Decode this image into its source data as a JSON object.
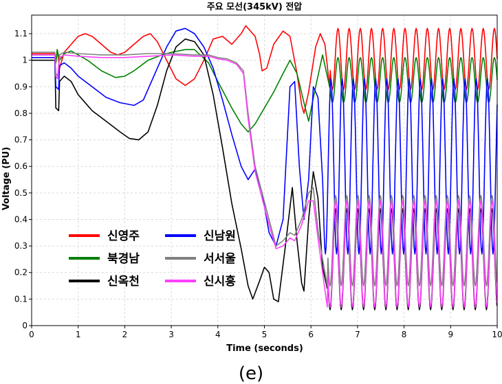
{
  "chart_data": {
    "type": "line",
    "title": "주요 모선(345kV) 전압",
    "xlabel": "Time (seconds)",
    "ylabel": "Voltage (PU)",
    "xlim": [
      0,
      10
    ],
    "ylim": [
      0,
      1.17
    ],
    "xticks": [
      0,
      1,
      2,
      3,
      4,
      5,
      6,
      7,
      8,
      9,
      10
    ],
    "yticks": [
      0,
      0.1,
      0.2,
      0.3,
      0.4,
      0.5,
      0.6,
      0.7,
      0.8,
      0.9,
      1,
      1.1
    ],
    "ytick_labels": [
      "0",
      "0.1",
      "0.2",
      "0.3",
      "0.4",
      "0.5",
      "0.6",
      "0.7",
      "0.8",
      "0.9",
      "1",
      "1.1"
    ],
    "grid": true,
    "legend_position": "lower-left",
    "series": [
      {
        "name": "신영주",
        "color": "#ff0000",
        "points": [
          [
            0,
            1.025
          ],
          [
            0.5,
            1.025
          ],
          [
            0.52,
            0.99
          ],
          [
            0.55,
            1.04
          ],
          [
            0.6,
            0.97
          ],
          [
            0.7,
            1.03
          ],
          [
            0.85,
            1.06
          ],
          [
            1,
            1.09
          ],
          [
            1.15,
            1.1
          ],
          [
            1.3,
            1.09
          ],
          [
            1.5,
            1.06
          ],
          [
            1.7,
            1.03
          ],
          [
            1.85,
            1.02
          ],
          [
            2,
            1.03
          ],
          [
            2.2,
            1.06
          ],
          [
            2.4,
            1.09
          ],
          [
            2.55,
            1.1
          ],
          [
            2.7,
            1.07
          ],
          [
            2.9,
            1.0
          ],
          [
            3.1,
            0.93
          ],
          [
            3.3,
            0.905
          ],
          [
            3.5,
            0.93
          ],
          [
            3.7,
            1.0
          ],
          [
            3.9,
            1.08
          ],
          [
            4.1,
            1.09
          ],
          [
            4.3,
            1.06
          ],
          [
            4.5,
            1.1
          ],
          [
            4.6,
            1.13
          ],
          [
            4.8,
            1.09
          ],
          [
            4.9,
            1.02
          ],
          [
            4.95,
            0.96
          ],
          [
            5.05,
            0.97
          ],
          [
            5.2,
            1.06
          ],
          [
            5.4,
            1.11
          ],
          [
            5.55,
            1.09
          ],
          [
            5.7,
            0.95
          ],
          [
            5.8,
            0.83
          ],
          [
            5.85,
            0.8
          ],
          [
            5.95,
            0.88
          ],
          [
            6.1,
            1.05
          ],
          [
            6.2,
            1.1
          ],
          [
            6.3,
            1.06
          ],
          [
            6.4,
            0.9
          ]
        ],
        "oscillation": {
          "t_start": 6.4,
          "t_end": 10,
          "center": 1.005,
          "amplitude": 0.115,
          "period": 0.24
        }
      },
      {
        "name": "북경남",
        "color": "#008000",
        "points": [
          [
            0,
            1.02
          ],
          [
            0.5,
            1.02
          ],
          [
            0.52,
            0.99
          ],
          [
            0.55,
            1.04
          ],
          [
            0.6,
            1.0
          ],
          [
            0.7,
            1.025
          ],
          [
            0.85,
            1.035
          ],
          [
            1.0,
            1.02
          ],
          [
            1.2,
            1.0
          ],
          [
            1.5,
            0.96
          ],
          [
            1.8,
            0.935
          ],
          [
            2.0,
            0.94
          ],
          [
            2.2,
            0.96
          ],
          [
            2.5,
            1.0
          ],
          [
            2.8,
            1.02
          ],
          [
            3.0,
            1.03
          ],
          [
            3.3,
            1.04
          ],
          [
            3.5,
            1.04
          ],
          [
            3.8,
            0.99
          ],
          [
            4.0,
            0.92
          ],
          [
            4.3,
            0.82
          ],
          [
            4.5,
            0.76
          ],
          [
            4.65,
            0.73
          ],
          [
            4.8,
            0.76
          ],
          [
            5.0,
            0.82
          ],
          [
            5.2,
            0.88
          ],
          [
            5.4,
            0.95
          ],
          [
            5.55,
            1.0
          ],
          [
            5.7,
            0.95
          ],
          [
            5.85,
            0.84
          ],
          [
            5.95,
            0.77
          ],
          [
            6.1,
            0.9
          ],
          [
            6.25,
            1.02
          ],
          [
            6.4,
            0.9
          ]
        ],
        "oscillation": {
          "t_start": 6.4,
          "t_end": 10,
          "center": 0.925,
          "amplitude": 0.085,
          "period": 0.24
        }
      },
      {
        "name": "신옥천",
        "color": "#000000",
        "points": [
          [
            0,
            1.0
          ],
          [
            0.5,
            1.0
          ],
          [
            0.52,
            0.82
          ],
          [
            0.58,
            0.81
          ],
          [
            0.6,
            0.92
          ],
          [
            0.7,
            0.94
          ],
          [
            0.85,
            0.92
          ],
          [
            1.0,
            0.87
          ],
          [
            1.3,
            0.81
          ],
          [
            1.6,
            0.77
          ],
          [
            1.9,
            0.73
          ],
          [
            2.1,
            0.705
          ],
          [
            2.3,
            0.7
          ],
          [
            2.5,
            0.73
          ],
          [
            2.7,
            0.83
          ],
          [
            2.9,
            0.96
          ],
          [
            3.1,
            1.05
          ],
          [
            3.3,
            1.08
          ],
          [
            3.5,
            1.07
          ],
          [
            3.7,
            1.02
          ],
          [
            3.9,
            0.87
          ],
          [
            4.1,
            0.67
          ],
          [
            4.3,
            0.46
          ],
          [
            4.5,
            0.29
          ],
          [
            4.65,
            0.15
          ],
          [
            4.75,
            0.1
          ],
          [
            4.9,
            0.17
          ],
          [
            5.0,
            0.22
          ],
          [
            5.1,
            0.2
          ],
          [
            5.2,
            0.1
          ],
          [
            5.3,
            0.09
          ],
          [
            5.45,
            0.3
          ],
          [
            5.6,
            0.52
          ],
          [
            5.7,
            0.32
          ],
          [
            5.8,
            0.16
          ],
          [
            5.85,
            0.13
          ],
          [
            5.95,
            0.4
          ],
          [
            6.05,
            0.58
          ],
          [
            6.15,
            0.48
          ],
          [
            6.25,
            0.22
          ],
          [
            6.35,
            0.14
          ]
        ],
        "oscillation": {
          "t_start": 6.35,
          "t_end": 10,
          "center": 0.25,
          "amplitude": 0.19,
          "period": 0.24
        }
      },
      {
        "name": "신남원",
        "color": "#0000ff",
        "points": [
          [
            0,
            1.01
          ],
          [
            0.5,
            1.01
          ],
          [
            0.52,
            0.9
          ],
          [
            0.58,
            0.89
          ],
          [
            0.6,
            0.98
          ],
          [
            0.7,
            0.99
          ],
          [
            0.85,
            0.97
          ],
          [
            1.0,
            0.94
          ],
          [
            1.3,
            0.9
          ],
          [
            1.6,
            0.86
          ],
          [
            1.9,
            0.84
          ],
          [
            2.2,
            0.83
          ],
          [
            2.4,
            0.85
          ],
          [
            2.6,
            0.93
          ],
          [
            2.9,
            1.05
          ],
          [
            3.1,
            1.11
          ],
          [
            3.3,
            1.12
          ],
          [
            3.5,
            1.1
          ],
          [
            3.7,
            1.05
          ],
          [
            3.9,
            0.97
          ],
          [
            4.1,
            0.85
          ],
          [
            4.3,
            0.72
          ],
          [
            4.5,
            0.6
          ],
          [
            4.65,
            0.55
          ],
          [
            4.8,
            0.59
          ],
          [
            4.95,
            0.5
          ],
          [
            5.1,
            0.35
          ],
          [
            5.25,
            0.3
          ],
          [
            5.4,
            0.4
          ],
          [
            5.55,
            0.9
          ],
          [
            5.65,
            0.92
          ],
          [
            5.75,
            0.6
          ],
          [
            5.85,
            0.4
          ],
          [
            5.95,
            0.55
          ],
          [
            6.05,
            0.9
          ],
          [
            6.15,
            0.86
          ],
          [
            6.25,
            0.55
          ]
        ],
        "oscillation": {
          "t_start": 6.25,
          "t_end": 10,
          "center": 0.6,
          "amplitude": 0.33,
          "period": 0.24
        }
      },
      {
        "name": "서서울",
        "color": "#808080",
        "points": [
          [
            0,
            1.03
          ],
          [
            0.5,
            1.03
          ],
          [
            0.52,
            0.95
          ],
          [
            0.56,
            0.94
          ],
          [
            0.6,
            1.02
          ],
          [
            0.7,
            1.03
          ],
          [
            1.0,
            1.025
          ],
          [
            1.5,
            1.02
          ],
          [
            2.0,
            1.02
          ],
          [
            2.5,
            1.025
          ],
          [
            3.0,
            1.025
          ],
          [
            3.5,
            1.02
          ],
          [
            3.8,
            1.02
          ],
          [
            4.0,
            1.01
          ],
          [
            4.2,
            1.005
          ],
          [
            4.4,
            0.99
          ],
          [
            4.55,
            0.96
          ],
          [
            4.65,
            0.8
          ],
          [
            4.8,
            0.6
          ],
          [
            4.95,
            0.5
          ],
          [
            5.1,
            0.4
          ],
          [
            5.25,
            0.3
          ],
          [
            5.4,
            0.32
          ],
          [
            5.55,
            0.35
          ],
          [
            5.65,
            0.34
          ],
          [
            5.8,
            0.4
          ],
          [
            5.95,
            0.5
          ],
          [
            6.05,
            0.52
          ],
          [
            6.15,
            0.36
          ],
          [
            6.25,
            0.25
          ],
          [
            6.35,
            0.15
          ]
        ],
        "oscillation": {
          "t_start": 6.35,
          "t_end": 10,
          "center": 0.32,
          "amplitude": 0.17,
          "period": 0.24
        }
      },
      {
        "name": "신시흥",
        "color": "#ff40ff",
        "points": [
          [
            0,
            1.02
          ],
          [
            0.5,
            1.02
          ],
          [
            0.52,
            0.94
          ],
          [
            0.56,
            0.93
          ],
          [
            0.6,
            1.01
          ],
          [
            0.7,
            1.02
          ],
          [
            1.0,
            1.015
          ],
          [
            1.5,
            1.01
          ],
          [
            2.0,
            1.01
          ],
          [
            2.5,
            1.015
          ],
          [
            3.0,
            1.02
          ],
          [
            3.5,
            1.015
          ],
          [
            3.8,
            1.015
          ],
          [
            4.0,
            1.005
          ],
          [
            4.2,
            1.0
          ],
          [
            4.4,
            0.985
          ],
          [
            4.55,
            0.95
          ],
          [
            4.65,
            0.78
          ],
          [
            4.8,
            0.58
          ],
          [
            4.95,
            0.48
          ],
          [
            5.1,
            0.38
          ],
          [
            5.25,
            0.29
          ],
          [
            5.4,
            0.3
          ],
          [
            5.55,
            0.33
          ],
          [
            5.65,
            0.32
          ],
          [
            5.8,
            0.38
          ],
          [
            5.95,
            0.47
          ],
          [
            6.05,
            0.47
          ],
          [
            6.15,
            0.33
          ],
          [
            6.25,
            0.2
          ],
          [
            6.35,
            0.07
          ]
        ],
        "oscillation": {
          "t_start": 6.35,
          "t_end": 10,
          "center": 0.27,
          "amplitude": 0.2,
          "period": 0.24
        }
      }
    ]
  },
  "caption": "(e)"
}
